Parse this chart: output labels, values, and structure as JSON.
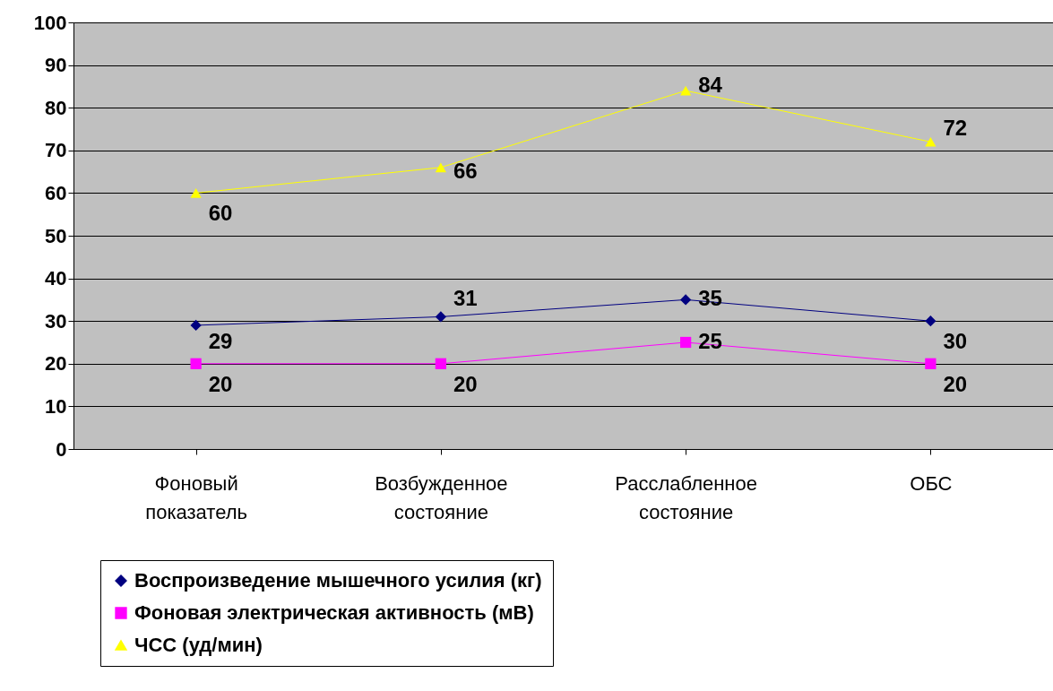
{
  "chart_data": {
    "type": "line",
    "categories": [
      "Фоновый показатель",
      "Возбужденное состояние",
      "Расслабленное состояние",
      "ОБС"
    ],
    "series": [
      {
        "name": "Воспроизведение мышечного усилия (кг)",
        "color": "#000080",
        "marker": "diamond",
        "values": [
          29,
          31,
          35,
          30
        ]
      },
      {
        "name": "Фоновая электрическая активность (мВ)",
        "color": "#ff00ff",
        "marker": "square",
        "values": [
          20,
          20,
          25,
          20
        ]
      },
      {
        "name": "ЧСС (уд/мин)",
        "color": "#ffff00",
        "marker": "triangle",
        "values": [
          60,
          66,
          84,
          72
        ]
      }
    ],
    "ylim": [
      0,
      100
    ],
    "yticks": [
      0,
      10,
      20,
      30,
      40,
      50,
      60,
      70,
      80,
      90,
      100
    ],
    "grid": "y",
    "legend": "bottom",
    "data_labels": true,
    "line_style": "solid"
  }
}
